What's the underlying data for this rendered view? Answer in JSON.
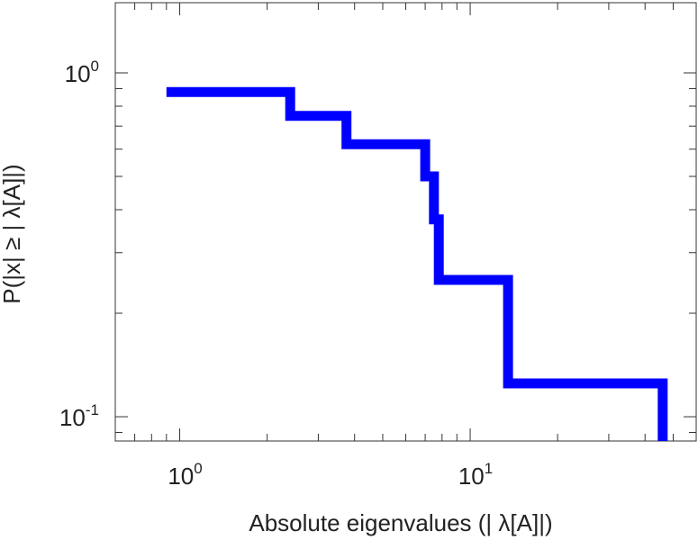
{
  "chart_data": {
    "type": "line",
    "step": true,
    "xlabel": "Absolute eigenvalues (|     λ[A]|)",
    "ylabel": "P(|x|  ≥ | λ[A]|)",
    "xscale": "log",
    "yscale": "log",
    "xlim": [
      0.6,
      60
    ],
    "ylim": [
      0.085,
      1.6
    ],
    "x_major_ticks": [
      {
        "value": 1,
        "base": "10",
        "exp": "0"
      },
      {
        "value": 10,
        "base": "10",
        "exp": "1"
      }
    ],
    "y_major_ticks": [
      {
        "value": 0.1,
        "base": "10",
        "exp": "-1"
      },
      {
        "value": 1,
        "base": "10",
        "exp": "0"
      }
    ],
    "grid": false,
    "line_color": "#0000ff",
    "series": [
      {
        "x": [
          0.9,
          2.4,
          2.4,
          3.75,
          3.75,
          7.0,
          7.0,
          7.5,
          7.5,
          7.8,
          7.8,
          13.5,
          13.5,
          46.0,
          46.0
        ],
        "y": [
          0.88,
          0.88,
          0.75,
          0.75,
          0.62,
          0.62,
          0.5,
          0.5,
          0.375,
          0.375,
          0.25,
          0.25,
          0.125,
          0.125,
          0.085
        ]
      }
    ]
  }
}
